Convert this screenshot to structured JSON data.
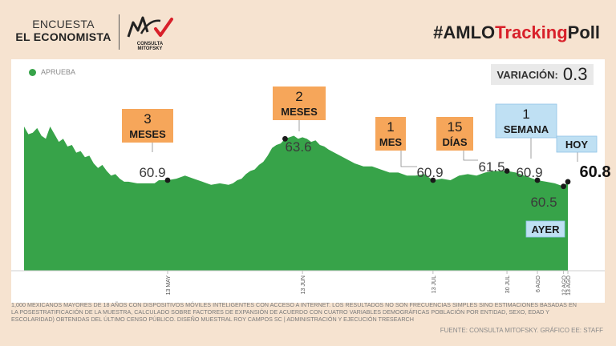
{
  "header": {
    "brand_line1": "ENCUESTA",
    "brand_line2": "EL ECONOMISTA",
    "logo_text": "CONSULTA MITOFSKY",
    "hashtag_prefix": "#AMLO",
    "hashtag_highlight": "Tracking",
    "hashtag_suffix": "Poll"
  },
  "variation": {
    "label": "VARIACIÓN:",
    "value": "0.3"
  },
  "colors": {
    "series": "#37a349",
    "orange_box": "#f6a65a",
    "blue_box": "#bfe0f3",
    "accent_red": "#d8202a",
    "background": "#f6e3d0"
  },
  "chart_data": {
    "type": "area",
    "legend": [
      {
        "name": "APRUEBA",
        "color": "#37a349"
      }
    ],
    "xlabels": [
      {
        "label": "13 MAY",
        "t": 33
      },
      {
        "label": "13 JUN",
        "t": 64
      },
      {
        "label": "13 JUL",
        "t": 94
      },
      {
        "label": "30 JUL",
        "t": 111
      },
      {
        "label": "6 AGO",
        "t": 118
      },
      {
        "label": "12 AGO",
        "t": 124
      },
      {
        "label": "13 AGO",
        "t": 125
      }
    ],
    "series": [
      {
        "name": "APRUEBA",
        "values": [
          [
            0,
            64.4
          ],
          [
            1,
            63.9
          ],
          [
            2,
            64.0
          ],
          [
            3,
            64.3
          ],
          [
            4,
            63.8
          ],
          [
            5,
            63.6
          ],
          [
            6,
            64.4
          ],
          [
            7,
            63.9
          ],
          [
            8,
            63.4
          ],
          [
            9,
            63.6
          ],
          [
            10,
            63.1
          ],
          [
            11,
            63.2
          ],
          [
            12,
            62.7
          ],
          [
            13,
            62.8
          ],
          [
            14,
            62.4
          ],
          [
            15,
            62.5
          ],
          [
            16,
            62.0
          ],
          [
            17,
            61.7
          ],
          [
            18,
            61.9
          ],
          [
            19,
            61.5
          ],
          [
            20,
            61.2
          ],
          [
            21,
            61.3
          ],
          [
            22,
            61.0
          ],
          [
            23,
            60.8
          ],
          [
            24,
            60.8
          ],
          [
            26,
            60.7
          ],
          [
            28,
            60.7
          ],
          [
            30,
            60.7
          ],
          [
            31,
            60.9
          ],
          [
            33,
            60.9
          ],
          [
            35,
            61.0
          ],
          [
            37,
            61.2
          ],
          [
            39,
            61.0
          ],
          [
            41,
            60.8
          ],
          [
            43,
            60.6
          ],
          [
            45,
            60.7
          ],
          [
            47,
            60.6
          ],
          [
            48,
            60.7
          ],
          [
            49,
            60.9
          ],
          [
            50,
            61.0
          ],
          [
            51,
            61.3
          ],
          [
            52,
            61.5
          ],
          [
            53,
            61.6
          ],
          [
            54,
            61.9
          ],
          [
            55,
            62.1
          ],
          [
            56,
            62.5
          ],
          [
            57,
            63.0
          ],
          [
            58,
            63.2
          ],
          [
            59,
            63.3
          ],
          [
            60,
            63.6
          ],
          [
            61,
            63.7
          ],
          [
            62,
            63.8
          ],
          [
            63,
            63.6
          ],
          [
            64,
            63.7
          ],
          [
            65,
            63.6
          ],
          [
            66,
            63.4
          ],
          [
            67,
            63.5
          ],
          [
            68,
            63.2
          ],
          [
            69,
            63.1
          ],
          [
            70,
            62.9
          ],
          [
            72,
            62.6
          ],
          [
            74,
            62.3
          ],
          [
            76,
            62.0
          ],
          [
            78,
            61.8
          ],
          [
            80,
            61.8
          ],
          [
            82,
            61.6
          ],
          [
            84,
            61.4
          ],
          [
            86,
            61.4
          ],
          [
            88,
            61.2
          ],
          [
            90,
            61.2
          ],
          [
            92,
            61.3
          ],
          [
            94,
            60.9
          ],
          [
            96,
            61.0
          ],
          [
            98,
            60.9
          ],
          [
            100,
            61.2
          ],
          [
            102,
            61.3
          ],
          [
            104,
            61.2
          ],
          [
            106,
            61.4
          ],
          [
            108,
            61.5
          ],
          [
            110,
            61.5
          ],
          [
            111,
            61.5
          ],
          [
            113,
            61.4
          ],
          [
            115,
            61.2
          ],
          [
            117,
            61.0
          ],
          [
            118,
            60.9
          ],
          [
            120,
            60.8
          ],
          [
            122,
            60.7
          ],
          [
            124,
            60.5
          ],
          [
            125,
            60.8
          ]
        ]
      }
    ],
    "annotations": [
      {
        "id": "3m",
        "t": 33,
        "value": 60.9,
        "value_label": "60.9",
        "box_lines": [
          "3",
          "MESES"
        ],
        "style": "orange"
      },
      {
        "id": "2m",
        "t": 60,
        "value": 63.6,
        "value_label": "63.6",
        "box_lines": [
          "2",
          "MESES"
        ],
        "style": "orange"
      },
      {
        "id": "1m",
        "t": 94,
        "value": 60.9,
        "value_label": "60.9",
        "box_lines": [
          "1",
          "MES"
        ],
        "style": "orange"
      },
      {
        "id": "15d",
        "t": 111,
        "value": 61.5,
        "value_label": "61.5",
        "box_lines": [
          "15",
          "DÍAS"
        ],
        "style": "orange"
      },
      {
        "id": "1w",
        "t": 118,
        "value": 60.9,
        "value_label": "60.9",
        "box_lines": [
          "1",
          "SEMANA"
        ],
        "style": "blue"
      },
      {
        "id": "ayer",
        "t": 124,
        "value": 60.5,
        "value_label": "60.5",
        "box_lines": [
          "AYER"
        ],
        "style": "blue"
      },
      {
        "id": "hoy",
        "t": 125,
        "value": 60.8,
        "value_label": "60.8",
        "box_lines": [
          "HOY"
        ],
        "style": "blue"
      }
    ]
  },
  "footer": {
    "note": "1,000 MEXICANOS MAYORES DE 18 AÑOS CON DISPOSITIVOS MÓVILES INTELIGENTES CON ACCESO A INTERNET. LOS RESULTADOS NO SON FRECUENCIAS SIMPLES SINO ESTIMACIONES BASADAS EN LA POSESTRATIFICACIÓN DE LA MUESTRA, CALCULADO SOBRE FACTORES DE EXPANSIÓN DE ACUERDO CON CUATRO VARIABLES DEMOGRÁFICAS POBLACIÓN POR ENTIDAD, SEXO, EDAD Y ESCOLARIDAD) OBTENIDAS DEL ÚLTIMO CENSO PÚBLICO. DISEÑO MUESTRAL ROY CAMPOS SC | ADMINISTRACIÓN Y EJECUCIÓN TRESEARCH",
    "source": "FUENTE: CONSULTA MITOFSKY. GRÁFICO EE: STAFF"
  }
}
